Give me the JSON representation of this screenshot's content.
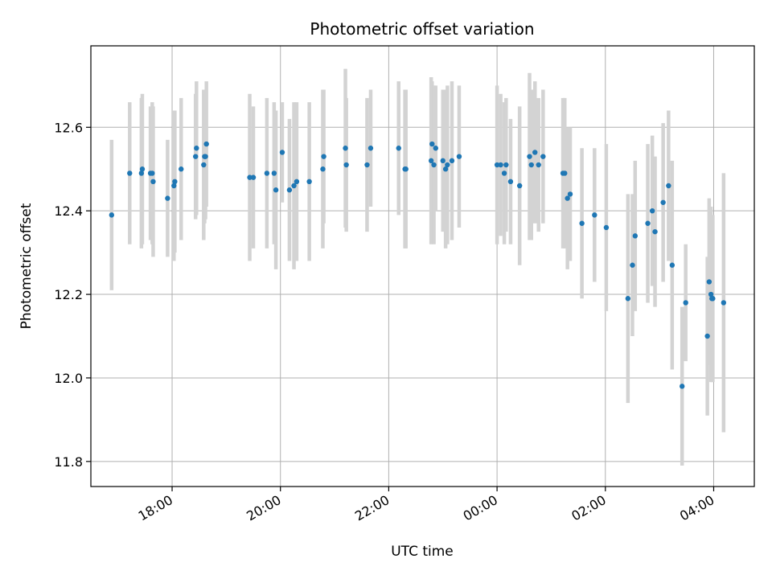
{
  "chart_data": {
    "type": "scatter",
    "title": "Photometric offset variation",
    "xlabel": "UTC time",
    "ylabel": "Photometric offset",
    "x_axis_kind": "time",
    "x_start": "16:30",
    "x_end": "04:45",
    "x_ticks": [
      "18:00",
      "20:00",
      "22:00",
      "00:00",
      "02:00",
      "04:00"
    ],
    "ylim": [
      11.74,
      12.795
    ],
    "y_ticks": [
      "11.8",
      "12.0",
      "12.2",
      "12.4",
      "12.6"
    ],
    "grid": true,
    "legend": "none",
    "colors": {
      "point": "#1f77b4",
      "errorbar": "#d3d3d3",
      "grid": "#b0b0b0"
    },
    "series": [
      {
        "x": [
          "16:53",
          "17:13",
          "17:26",
          "17:27",
          "17:36",
          "17:38",
          "17:39",
          "17:55",
          "18:02",
          "18:03",
          "18:10",
          "18:26",
          "18:27",
          "18:35",
          "18:36",
          "18:37",
          "18:38",
          "19:26",
          "19:30",
          "19:45",
          "19:53",
          "19:55",
          "20:02",
          "20:10",
          "20:15",
          "20:18",
          "20:32",
          "20:47",
          "20:48",
          "21:12",
          "21:13",
          "21:36",
          "21:40",
          "22:11",
          "22:18",
          "22:19",
          "22:47",
          "22:48",
          "22:50",
          "22:52",
          "23:00",
          "23:03",
          "23:05",
          "23:10",
          "23:18",
          "00:00",
          "00:04",
          "00:08",
          "00:10",
          "00:15",
          "00:25",
          "00:36",
          "00:38",
          "00:42",
          "00:46",
          "00:51",
          "01:13",
          "01:15",
          "01:18",
          "01:21",
          "01:34",
          "01:48",
          "02:01",
          "02:25",
          "02:30",
          "02:33",
          "02:47",
          "02:52",
          "02:55",
          "03:04",
          "03:10",
          "03:14",
          "03:25",
          "03:29",
          "03:53",
          "03:55",
          "03:57",
          "03:58",
          "03:59",
          "04:11"
        ],
        "y": [
          12.39,
          12.49,
          12.49,
          12.5,
          12.49,
          12.49,
          12.47,
          12.43,
          12.46,
          12.47,
          12.5,
          12.53,
          12.55,
          12.51,
          12.53,
          12.53,
          12.56,
          12.48,
          12.48,
          12.49,
          12.49,
          12.45,
          12.54,
          12.45,
          12.46,
          12.47,
          12.47,
          12.5,
          12.53,
          12.55,
          12.51,
          12.51,
          12.55,
          12.55,
          12.5,
          12.5,
          12.52,
          12.56,
          12.51,
          12.55,
          12.52,
          12.5,
          12.51,
          12.52,
          12.53,
          12.51,
          12.51,
          12.49,
          12.51,
          12.47,
          12.46,
          12.53,
          12.51,
          12.54,
          12.51,
          12.53,
          12.49,
          12.49,
          12.43,
          12.44,
          12.37,
          12.39,
          12.36,
          12.19,
          12.27,
          12.34,
          12.37,
          12.4,
          12.35,
          12.42,
          12.46,
          12.27,
          11.98,
          12.18,
          12.1,
          12.23,
          12.2,
          12.19,
          12.19,
          12.18
        ],
        "yerr": [
          0.18,
          0.17,
          0.18,
          0.18,
          0.16,
          0.17,
          0.18,
          0.14,
          0.18,
          0.17,
          0.17,
          0.15,
          0.16,
          0.18,
          0.16,
          0.15,
          0.15,
          0.2,
          0.17,
          0.18,
          0.17,
          0.19,
          0.12,
          0.17,
          0.2,
          0.19,
          0.19,
          0.19,
          0.16,
          0.19,
          0.16,
          0.16,
          0.14,
          0.16,
          0.19,
          0.19,
          0.2,
          0.15,
          0.19,
          0.15,
          0.17,
          0.19,
          0.19,
          0.19,
          0.17,
          0.19,
          0.17,
          0.17,
          0.16,
          0.15,
          0.19,
          0.2,
          0.18,
          0.17,
          0.16,
          0.16,
          0.18,
          0.18,
          0.17,
          0.16,
          0.18,
          0.16,
          0.2,
          0.25,
          0.17,
          0.18,
          0.19,
          0.18,
          0.18,
          0.19,
          0.18,
          0.25,
          0.19,
          0.14,
          0.19,
          0.2,
          0.21,
          0.2,
          0.2,
          0.31
        ]
      }
    ]
  }
}
